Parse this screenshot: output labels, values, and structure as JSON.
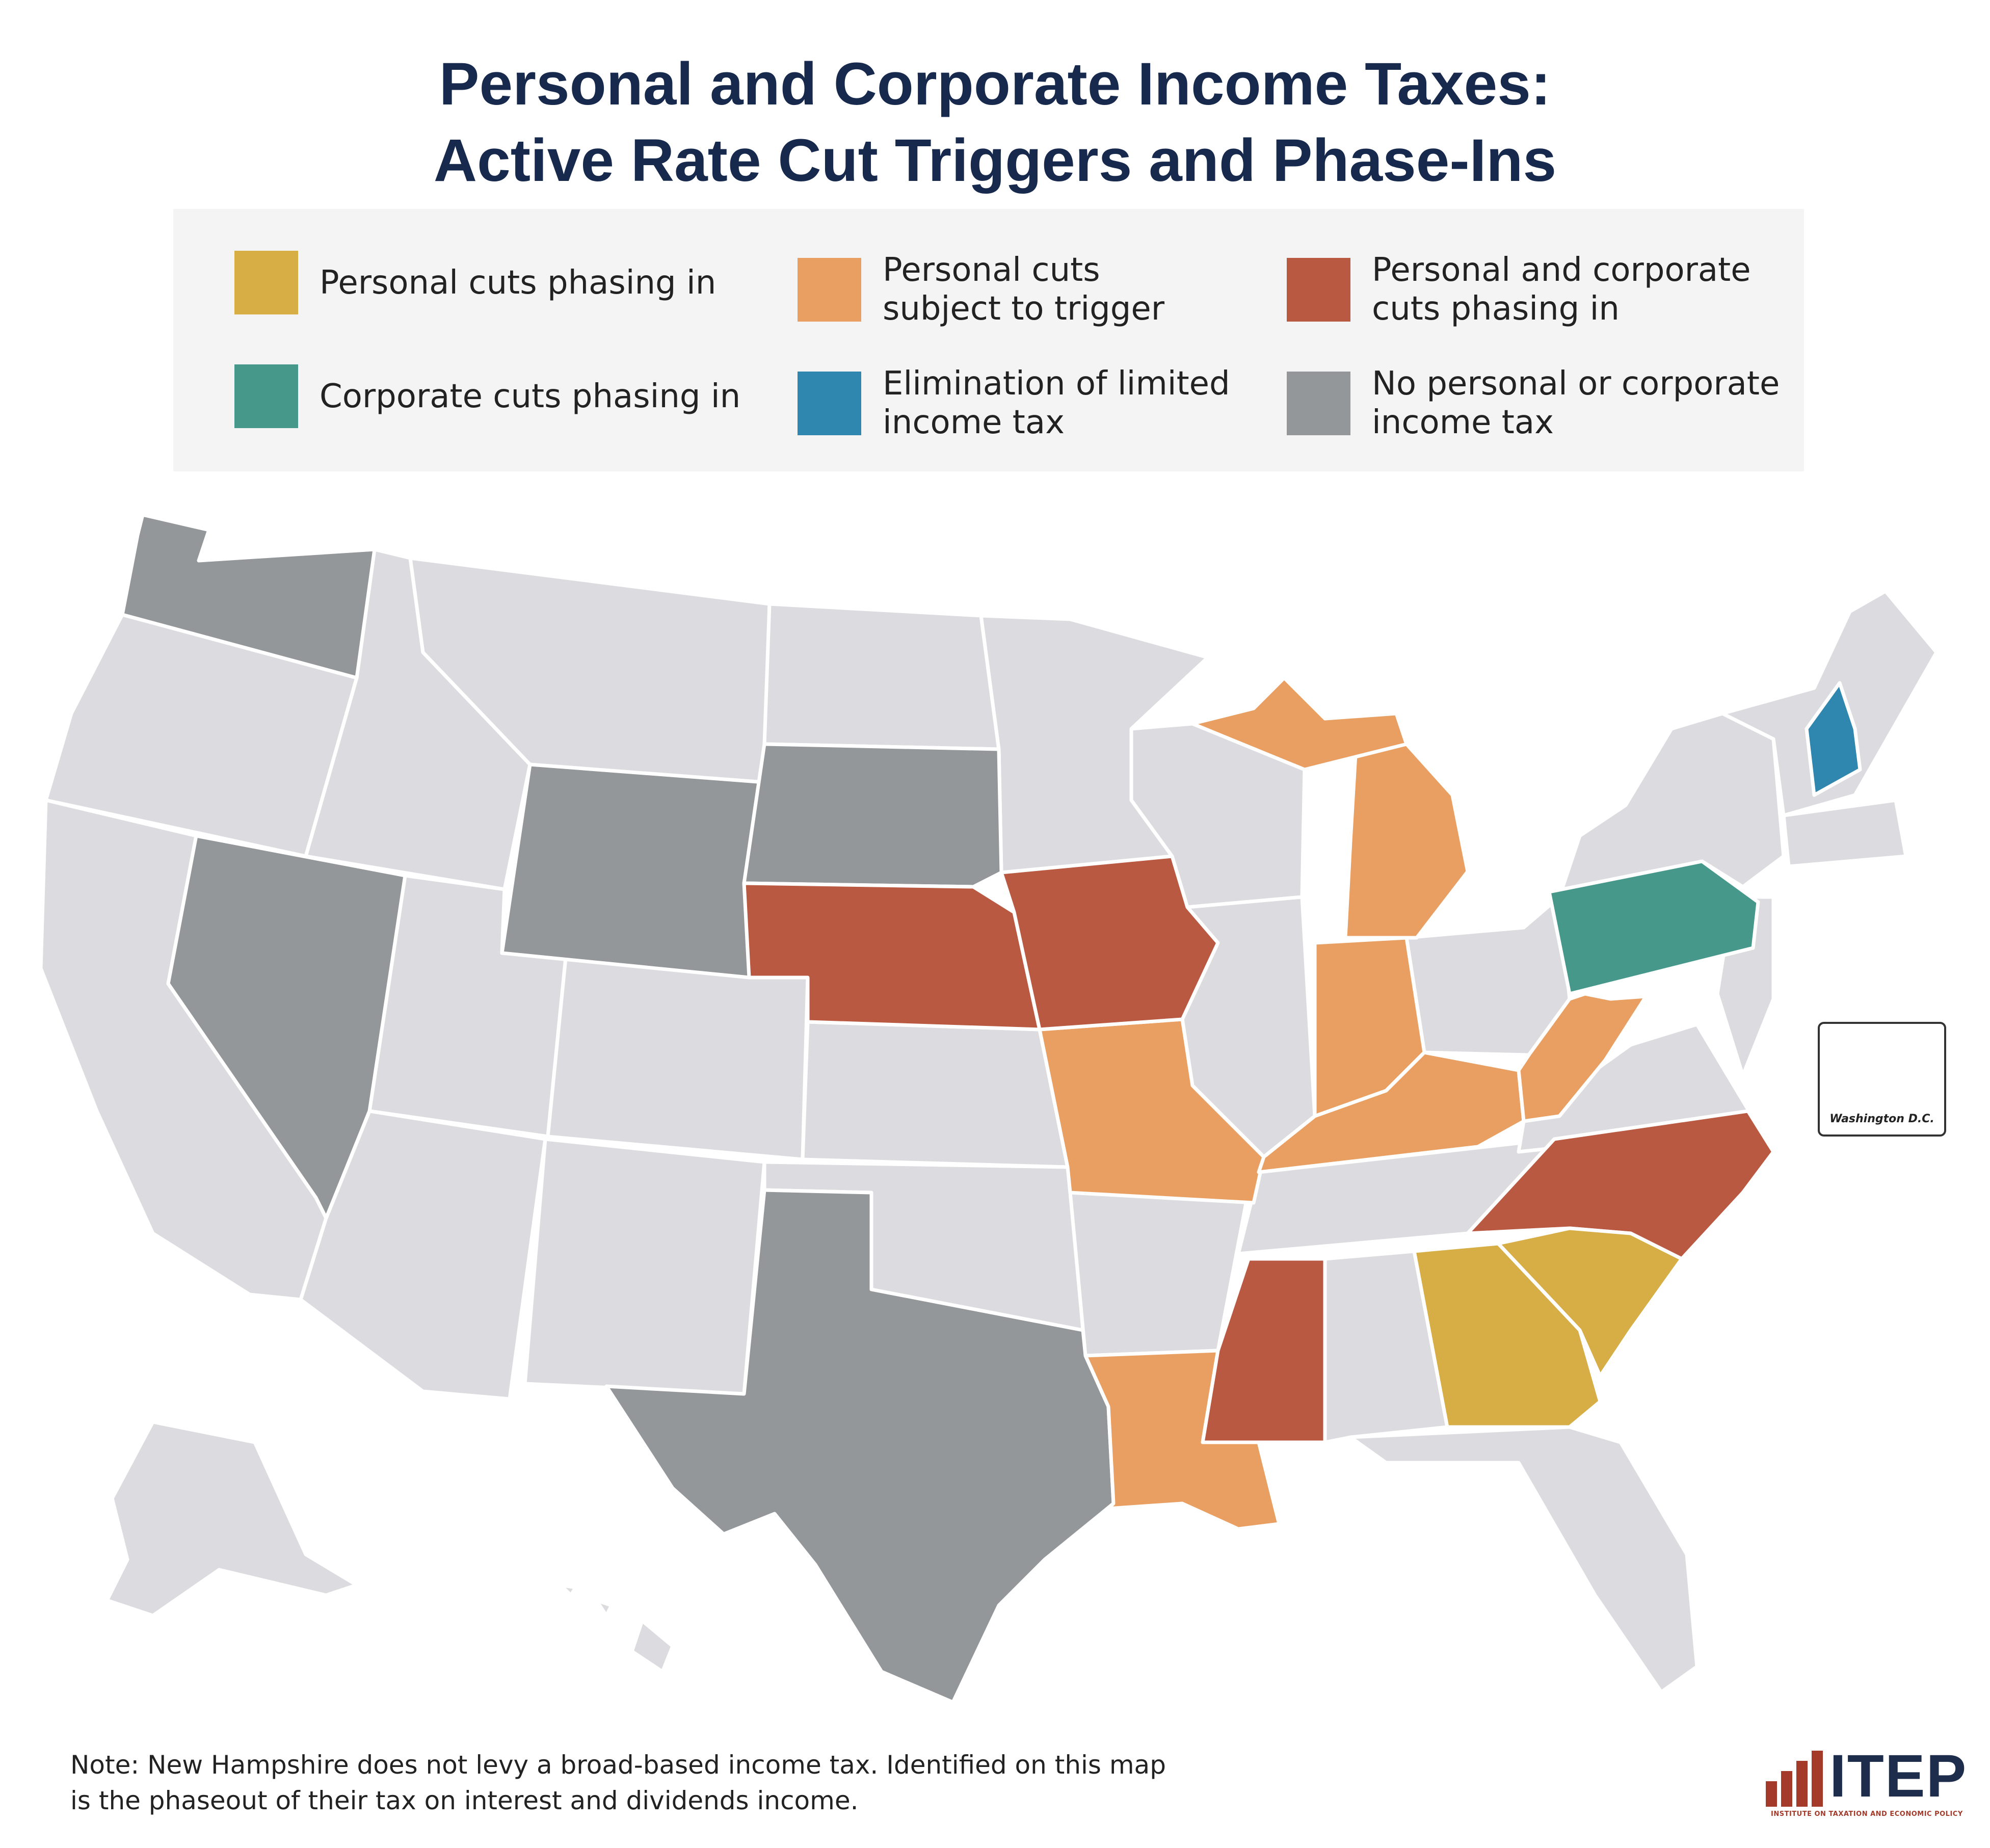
{
  "title": {
    "line1": "Personal and Corporate Income Taxes:",
    "line2": "Active Rate Cut Triggers and Phase-Ins"
  },
  "legend": [
    {
      "label_lines": [
        "Personal cuts phasing in"
      ],
      "color": "#d6ae45"
    },
    {
      "label_lines": [
        "Personal cuts",
        "subject to trigger"
      ],
      "color": "#e99f62"
    },
    {
      "label_lines": [
        "Personal and corporate",
        "cuts phasing in"
      ],
      "color": "#b95942"
    },
    {
      "label_lines": [
        "Corporate cuts phasing in"
      ],
      "color": "#45988a"
    },
    {
      "label_lines": [
        "Elimination of limited",
        "income tax"
      ],
      "color": "#2f86ae"
    },
    {
      "label_lines": [
        "No personal or corporate",
        "income tax"
      ],
      "color": "#939799"
    }
  ],
  "map": {
    "base_color": "#dcdce0",
    "border_color": "#ffffff",
    "categories": {
      "personal_phasing": [
        "GA",
        "SC"
      ],
      "personal_trigger": [
        "MI",
        "IN",
        "KY",
        "WV",
        "MO",
        "LA"
      ],
      "personal_and_corporate": [
        "NE",
        "IA",
        "MS",
        "NC"
      ],
      "corporate_phasing": [
        "PA"
      ],
      "limited_income_tax_elimination": [
        "NH"
      ],
      "no_income_tax": [
        "WA",
        "NV",
        "WY",
        "SD",
        "TX"
      ]
    }
  },
  "inset": {
    "label": "Washington D.C."
  },
  "note": {
    "line1": "Note: New Hampshire does not levy a broad-based income tax. Identified on this map",
    "line2": "is the phaseout of their tax on interest and dividends income."
  },
  "logo": {
    "text": "ITEP",
    "subtitle": "INSTITUTE ON TAXATION AND ECONOMIC POLICY"
  }
}
